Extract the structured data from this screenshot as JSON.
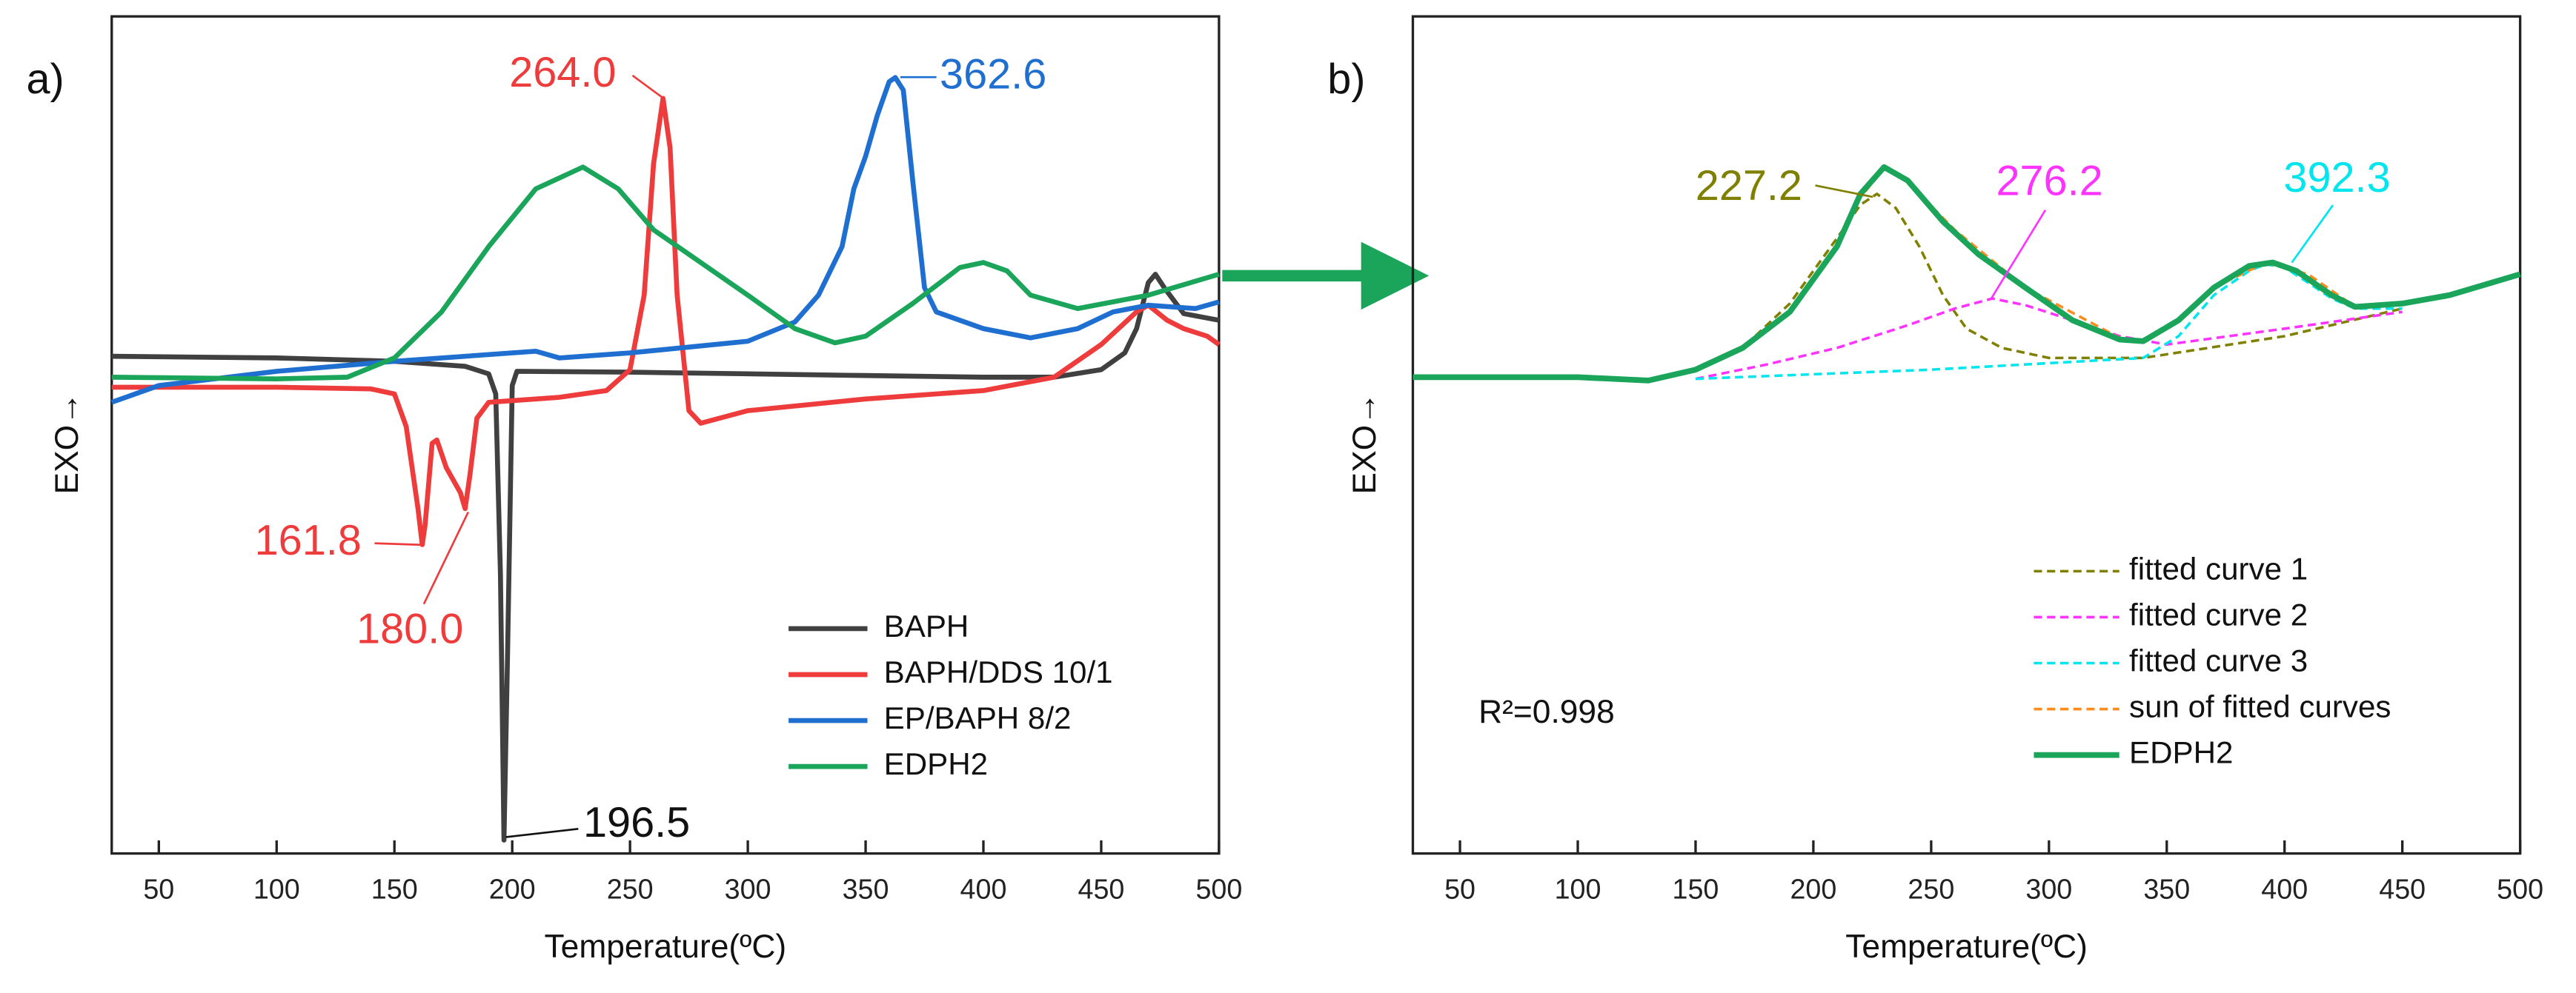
{
  "chart_data": [
    {
      "type": "line",
      "panel_label": "a)",
      "xlabel": "Temperature(ºC)",
      "ylabel": "EXO→",
      "xlim": [
        30,
        500
      ],
      "xticks": [
        50,
        100,
        150,
        200,
        250,
        300,
        350,
        400,
        450,
        500
      ],
      "ylim": [
        0,
        100
      ],
      "series": [
        {
          "name": "BAPH",
          "color": "#404040",
          "line_width": 3,
          "x": [
            30,
            100,
            150,
            180,
            190,
            193,
            195,
            196.5,
            198,
            200,
            202,
            250,
            300,
            350,
            400,
            430,
            450,
            460,
            465,
            470,
            473,
            477,
            485,
            500
          ],
          "values": [
            59.4,
            59.2,
            58.8,
            58.2,
            57.3,
            54.9,
            33.3,
            1.6,
            23.5,
            55.9,
            57.6,
            57.5,
            57.3,
            57.1,
            56.9,
            56.9,
            57.8,
            59.8,
            62.7,
            68.2,
            69.2,
            67.5,
            64.5,
            63.7
          ]
        },
        {
          "name": "BAPH/DDS 10/1",
          "color": "#ee3b3b",
          "line_width": 3,
          "x": [
            30,
            100,
            140,
            150,
            155,
            160,
            161.8,
            163,
            166,
            168,
            172,
            178,
            180,
            182,
            185,
            190,
            220,
            240,
            250,
            256,
            260,
            264,
            267,
            270,
            275,
            280,
            300,
            350,
            400,
            430,
            450,
            465,
            470,
            478,
            485,
            495,
            500
          ],
          "values": [
            55.7,
            55.7,
            55.5,
            54.9,
            51.0,
            41.2,
            36.9,
            39.2,
            49.0,
            49.4,
            46.1,
            43.1,
            41.2,
            45.1,
            52.0,
            53.9,
            54.5,
            55.3,
            57.8,
            66.7,
            82.4,
            90.2,
            84.3,
            66.7,
            52.9,
            51.4,
            52.9,
            54.3,
            55.3,
            56.9,
            60.8,
            64.7,
            65.5,
            63.7,
            62.7,
            61.8,
            60.8
          ]
        },
        {
          "name": "EP/BAPH 8/2",
          "color": "#1f6fd1",
          "line_width": 3,
          "x": [
            30,
            50,
            100,
            150,
            200,
            210,
            220,
            250,
            300,
            320,
            330,
            340,
            345,
            350,
            355,
            360,
            362.6,
            366,
            370,
            375,
            380,
            400,
            420,
            440,
            455,
            470,
            490,
            500
          ],
          "values": [
            53.9,
            55.9,
            57.6,
            58.8,
            59.8,
            60.0,
            59.2,
            59.8,
            61.2,
            63.5,
            66.7,
            72.5,
            79.4,
            83.3,
            88.2,
            92.2,
            92.7,
            91.2,
            80.4,
            67.6,
            64.7,
            62.7,
            61.6,
            62.7,
            64.7,
            65.5,
            65.1,
            65.9
          ]
        },
        {
          "name": "EDPH2",
          "color": "#1aa55a",
          "line_width": 3,
          "x": [
            30,
            100,
            130,
            150,
            170,
            190,
            210,
            230,
            245,
            260,
            280,
            300,
            320,
            337,
            350,
            370,
            390,
            400,
            410,
            420,
            440,
            470,
            500
          ],
          "values": [
            56.9,
            56.7,
            56.9,
            59.2,
            64.7,
            72.5,
            79.4,
            82.0,
            79.4,
            74.5,
            70.6,
            66.7,
            62.7,
            61.0,
            61.8,
            65.7,
            70.0,
            70.6,
            69.6,
            66.7,
            65.1,
            66.7,
            69.2
          ]
        }
      ],
      "annotations": [
        {
          "text": "264.0",
          "color": "#ee3b3b"
        },
        {
          "text": "362.6",
          "color": "#1f6fd1"
        },
        {
          "text": "161.8",
          "color": "#ee3b3b"
        },
        {
          "text": "180.0",
          "color": "#ee3b3b"
        },
        {
          "text": "196.5",
          "color": "#111111"
        }
      ]
    },
    {
      "type": "line",
      "panel_label": "b)",
      "xlabel": "Temperature(ºC)",
      "ylabel": "EXO→",
      "xlim": [
        30,
        500
      ],
      "xticks": [
        50,
        100,
        150,
        200,
        250,
        300,
        350,
        400,
        450,
        500
      ],
      "ylim": [
        0,
        100
      ],
      "series": [
        {
          "name": "fitted curve 1",
          "color": "#808000",
          "line_width": 1.6,
          "line_style": "dashed",
          "x": [
            130,
            150,
            170,
            190,
            210,
            220,
            227,
            235,
            245,
            255,
            265,
            280,
            300,
            340,
            400,
            450
          ],
          "values": [
            56.5,
            57.6,
            60.4,
            65.7,
            73.5,
            77.5,
            78.8,
            77.1,
            72.5,
            66.7,
            62.7,
            60.4,
            59.2,
            59.2,
            61.8,
            65.1
          ]
        },
        {
          "name": "fitted curve 2",
          "color": "#ff33ff",
          "line_width": 1.6,
          "line_style": "dashed",
          "x": [
            150,
            180,
            210,
            240,
            260,
            276,
            290,
            310,
            330,
            350,
            400,
            450
          ],
          "values": [
            56.7,
            58.4,
            60.4,
            63.1,
            65.1,
            66.3,
            65.5,
            63.7,
            61.8,
            60.8,
            62.7,
            64.7
          ]
        },
        {
          "name": "fitted curve 3",
          "color": "#00e5ee",
          "line_width": 1.6,
          "line_style": "dashed",
          "x": [
            150,
            250,
            340,
            355,
            370,
            385,
            392,
            400,
            410,
            420,
            430,
            450
          ],
          "values": [
            56.7,
            57.8,
            59.2,
            61.8,
            66.7,
            69.6,
            70.4,
            70.0,
            68.2,
            66.3,
            65.1,
            65.1
          ]
        },
        {
          "name": "sun of fitted curves",
          "color": "#ff8c1a",
          "line_width": 1.6,
          "line_style": "dashed",
          "x": [
            130,
            150,
            170,
            190,
            210,
            220,
            230,
            240,
            260,
            290,
            330,
            340,
            355,
            370,
            392,
            410,
            430,
            450
          ],
          "values": [
            56.5,
            57.8,
            60.4,
            64.7,
            72.5,
            78.4,
            81.8,
            80.2,
            74.5,
            67.6,
            61.6,
            61.2,
            63.7,
            67.6,
            70.6,
            69.2,
            65.3,
            65.7
          ]
        },
        {
          "name": "EDPH2",
          "color": "#1aa55a",
          "line_width": 3.5,
          "x": [
            30,
            100,
            130,
            150,
            170,
            190,
            210,
            220,
            230,
            240,
            255,
            270,
            290,
            310,
            330,
            340,
            355,
            370,
            385,
            395,
            405,
            420,
            430,
            450,
            470,
            500
          ],
          "values": [
            56.9,
            56.9,
            56.5,
            57.8,
            60.4,
            64.7,
            72.5,
            78.8,
            82.0,
            80.4,
            75.5,
            71.6,
            67.6,
            63.7,
            61.4,
            61.2,
            63.7,
            67.6,
            70.2,
            70.6,
            69.6,
            66.7,
            65.3,
            65.7,
            66.7,
            69.2
          ]
        }
      ],
      "annotations": [
        {
          "text": "227.2",
          "color": "#808000"
        },
        {
          "text": "276.2",
          "color": "#ff33ff"
        },
        {
          "text": "392.3",
          "color": "#00e5ee"
        },
        {
          "text": "R²=0.998",
          "color": "#111111"
        }
      ]
    }
  ]
}
